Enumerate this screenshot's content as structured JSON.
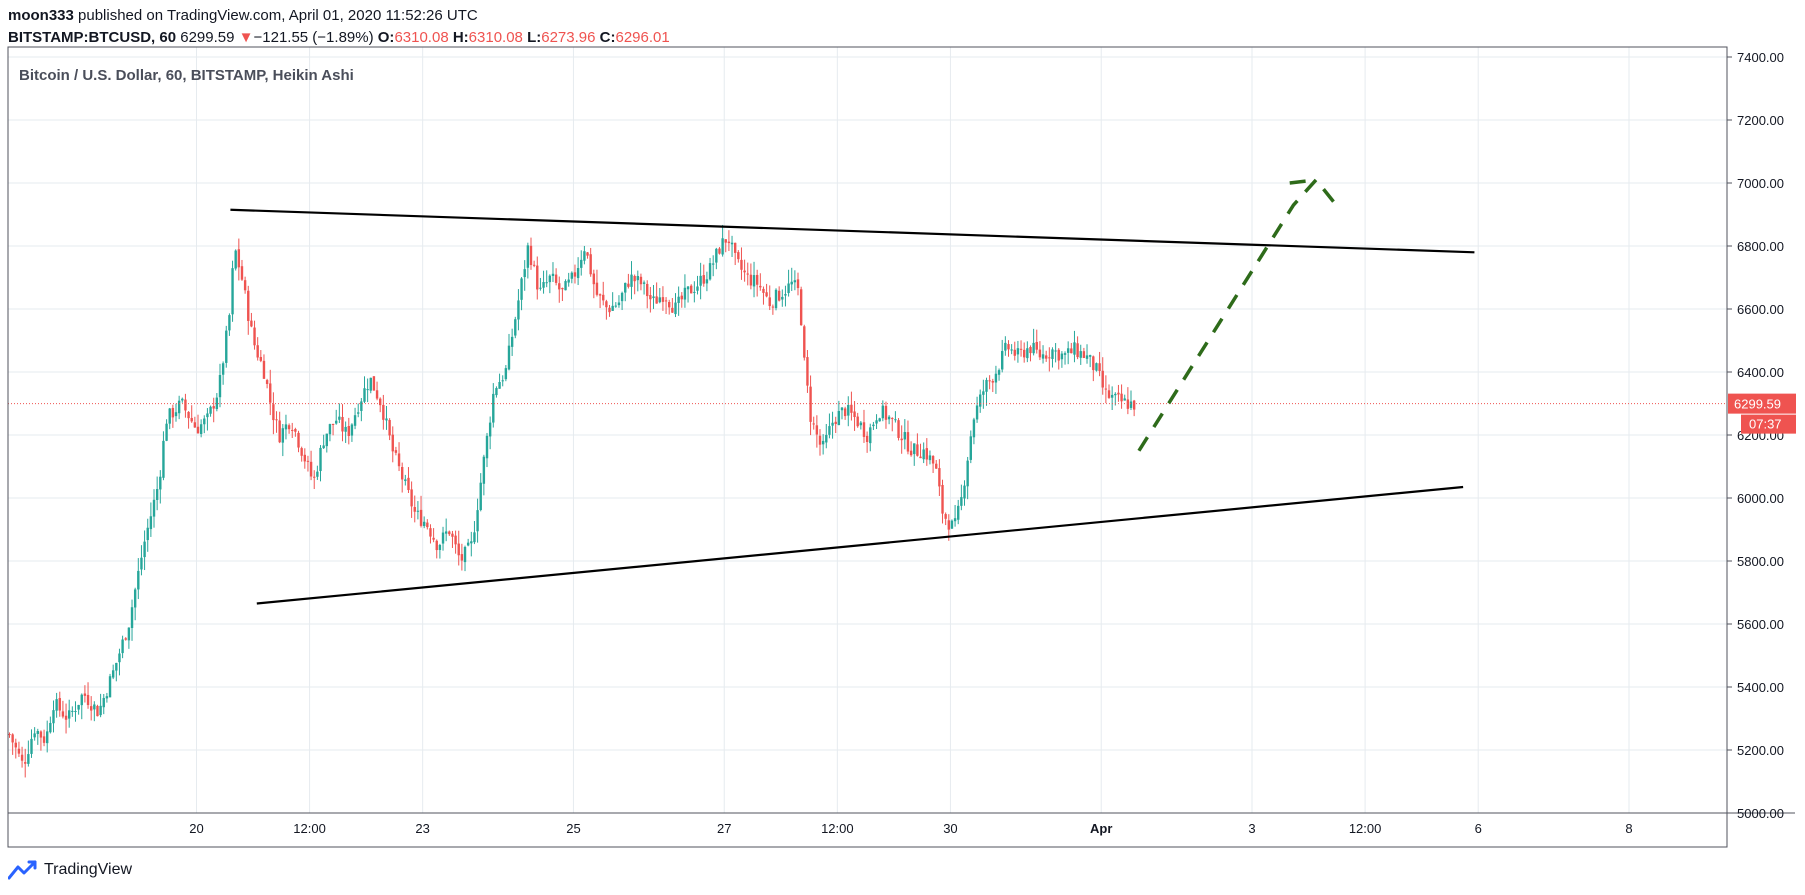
{
  "header": {
    "author": "moon333",
    "published_text": " published on TradingView.com, April 01, 2020 11:52:26 UTC",
    "symbol": "BITSTAMP:BTCUSD, 60",
    "last": "6299.59",
    "change_arrow": "▼",
    "change": "−121.55 (−1.89%)",
    "o_label": "O:",
    "o_value": "6310.08",
    "h_label": "H:",
    "h_value": "6310.08",
    "l_label": "L:",
    "l_value": "6273.96",
    "c_label": "C:",
    "c_value": "6296.01"
  },
  "legend_text": "Bitcoin / U.S. Dollar, 60, BITSTAMP, Heikin Ashi",
  "footer": {
    "brand": "TradingView",
    "logo_icon": "tradingview-logo-icon"
  },
  "colors": {
    "up": "#26a69a",
    "down": "#ef5350",
    "grid": "#e6ebef",
    "trendline": "#000000",
    "projection": "#2e6b1a",
    "price_line": "#ef5350"
  },
  "chart_data": {
    "type": "candlestick",
    "style": "Heikin Ashi",
    "title": "Bitcoin / U.S. Dollar, 60, BITSTAMP, Heikin Ashi",
    "ylim": [
      5000,
      7400
    ],
    "y_ticks": [
      "7400.00",
      "7200.00",
      "7000.00",
      "6800.00",
      "6600.00",
      "6400.00",
      "6200.00",
      "6000.00",
      "5800.00",
      "5600.00",
      "5400.00",
      "5200.00",
      "5000.00"
    ],
    "y_tick_values": [
      7400,
      7200,
      7000,
      6800,
      6600,
      6400,
      6200,
      6000,
      5800,
      5600,
      5400,
      5200,
      5000
    ],
    "x_range_days": [
      17.5,
      40.3
    ],
    "x_ticks": [
      {
        "label": "20",
        "day": 20.0
      },
      {
        "label": "12:00",
        "day": 21.5
      },
      {
        "label": "23",
        "day": 23.0
      },
      {
        "label": "25",
        "day": 25.0
      },
      {
        "label": "27",
        "day": 27.0
      },
      {
        "label": "12:00",
        "day": 28.5
      },
      {
        "label": "30",
        "day": 30.0
      },
      {
        "label": "Apr",
        "day": 32.0
      },
      {
        "label": "3",
        "day": 34.0
      },
      {
        "label": "12:00",
        "day": 35.5
      },
      {
        "label": "6",
        "day": 37.0
      },
      {
        "label": "8",
        "day": 39.0
      }
    ],
    "last_price": {
      "label": "6299.59",
      "value": 6299.59,
      "countdown": "07:37"
    },
    "price_path": [
      [
        17.52,
        5250
      ],
      [
        17.7,
        5150
      ],
      [
        17.85,
        5270
      ],
      [
        18.0,
        5230
      ],
      [
        18.1,
        5350
      ],
      [
        18.3,
        5300
      ],
      [
        18.5,
        5380
      ],
      [
        18.7,
        5320
      ],
      [
        18.9,
        5450
      ],
      [
        19.1,
        5600
      ],
      [
        19.3,
        5850
      ],
      [
        19.5,
        6050
      ],
      [
        19.6,
        6250
      ],
      [
        19.8,
        6300
      ],
      [
        20.0,
        6220
      ],
      [
        20.15,
        6250
      ],
      [
        20.3,
        6350
      ],
      [
        20.45,
        6600
      ],
      [
        20.5,
        6800
      ],
      [
        20.6,
        6700
      ],
      [
        20.75,
        6500
      ],
      [
        20.9,
        6400
      ],
      [
        21.0,
        6280
      ],
      [
        21.1,
        6200
      ],
      [
        21.25,
        6250
      ],
      [
        21.4,
        6150
      ],
      [
        21.55,
        6050
      ],
      [
        21.7,
        6200
      ],
      [
        21.85,
        6250
      ],
      [
        22.0,
        6200
      ],
      [
        22.15,
        6300
      ],
      [
        22.3,
        6380
      ],
      [
        22.45,
        6300
      ],
      [
        22.6,
        6150
      ],
      [
        22.75,
        6050
      ],
      [
        22.9,
        5950
      ],
      [
        23.05,
        5920
      ],
      [
        23.2,
        5850
      ],
      [
        23.35,
        5900
      ],
      [
        23.5,
        5800
      ],
      [
        23.65,
        5850
      ],
      [
        23.8,
        6100
      ],
      [
        23.95,
        6350
      ],
      [
        24.1,
        6400
      ],
      [
        24.25,
        6600
      ],
      [
        24.4,
        6800
      ],
      [
        24.55,
        6650
      ],
      [
        24.7,
        6700
      ],
      [
        24.85,
        6650
      ],
      [
        25.0,
        6700
      ],
      [
        25.15,
        6800
      ],
      [
        25.3,
        6650
      ],
      [
        25.45,
        6600
      ],
      [
        25.6,
        6620
      ],
      [
        25.75,
        6700
      ],
      [
        25.9,
        6680
      ],
      [
        26.05,
        6620
      ],
      [
        26.2,
        6650
      ],
      [
        26.35,
        6600
      ],
      [
        26.5,
        6650
      ],
      [
        26.65,
        6680
      ],
      [
        26.8,
        6720
      ],
      [
        26.95,
        6800
      ],
      [
        27.05,
        6830
      ],
      [
        27.15,
        6750
      ],
      [
        27.3,
        6700
      ],
      [
        27.45,
        6680
      ],
      [
        27.6,
        6620
      ],
      [
        27.75,
        6650
      ],
      [
        27.9,
        6680
      ],
      [
        28.0,
        6650
      ],
      [
        28.05,
        6450
      ],
      [
        28.15,
        6250
      ],
      [
        28.3,
        6150
      ],
      [
        28.45,
        6250
      ],
      [
        28.6,
        6280
      ],
      [
        28.75,
        6250
      ],
      [
        28.9,
        6200
      ],
      [
        29.05,
        6280
      ],
      [
        29.2,
        6250
      ],
      [
        29.35,
        6200
      ],
      [
        29.5,
        6150
      ],
      [
        29.65,
        6150
      ],
      [
        29.8,
        6100
      ],
      [
        29.9,
        5950
      ],
      [
        30.05,
        5900
      ],
      [
        30.15,
        6000
      ],
      [
        30.3,
        6250
      ],
      [
        30.45,
        6350
      ],
      [
        30.6,
        6400
      ],
      [
        30.75,
        6480
      ],
      [
        30.9,
        6450
      ],
      [
        31.05,
        6480
      ],
      [
        31.2,
        6450
      ],
      [
        31.35,
        6470
      ],
      [
        31.5,
        6450
      ],
      [
        31.65,
        6470
      ],
      [
        31.8,
        6450
      ],
      [
        31.95,
        6400
      ],
      [
        32.05,
        6330
      ],
      [
        32.2,
        6310
      ],
      [
        32.35,
        6300
      ],
      [
        32.45,
        6296
      ]
    ],
    "annotations": [
      {
        "type": "trendline",
        "name": "resistance",
        "points": [
          [
            20.45,
            6915
          ],
          [
            36.95,
            6780
          ]
        ]
      },
      {
        "type": "trendline",
        "name": "support",
        "points": [
          [
            20.8,
            5665
          ],
          [
            36.8,
            6035
          ]
        ]
      },
      {
        "type": "dashed-projection",
        "points": [
          [
            32.5,
            6150
          ],
          [
            34.55,
            6930
          ],
          [
            34.85,
            7010
          ],
          [
            35.15,
            6920
          ]
        ]
      },
      {
        "type": "projection-top",
        "points": [
          [
            34.5,
            7000
          ],
          [
            34.85,
            7010
          ]
        ]
      }
    ]
  }
}
